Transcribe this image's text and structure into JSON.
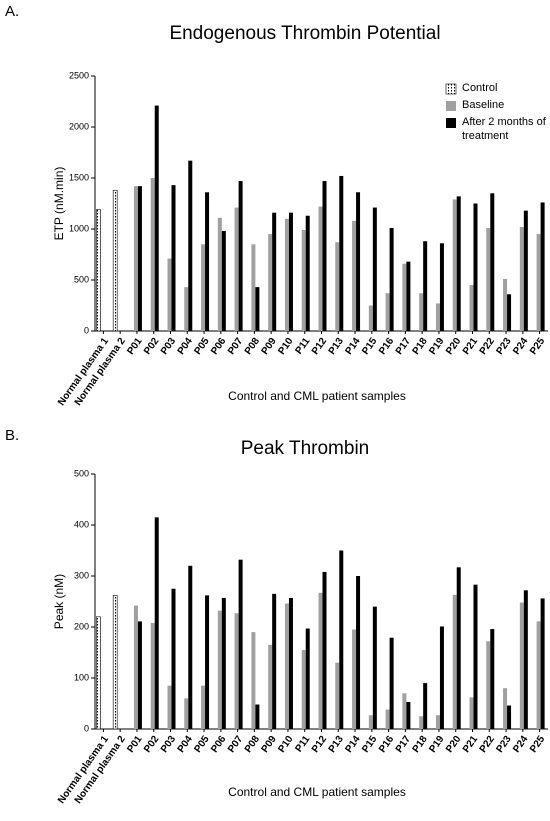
{
  "chart_data": [
    {
      "type": "bar",
      "panel_label": "A.",
      "title": "Endogenous Thrombin Potential",
      "x_label": "Control and CML patient samples",
      "y_label": "ETP (nM.min)",
      "categories": [
        "Normal plasma 1",
        "Normal plasma 2",
        "P01",
        "P02",
        "P03",
        "P04",
        "P05",
        "P06",
        "P07",
        "P08",
        "P09",
        "P10",
        "P11",
        "P12",
        "P13",
        "P14",
        "P15",
        "P16",
        "P17",
        "P18",
        "P19",
        "P20",
        "P21",
        "P22",
        "P23",
        "P24",
        "P25"
      ],
      "series": [
        {
          "name": "Control",
          "color": "#ffffff",
          "pattern": "dotted",
          "values": [
            1190,
            1380,
            null,
            null,
            null,
            null,
            null,
            null,
            null,
            null,
            null,
            null,
            null,
            null,
            null,
            null,
            null,
            null,
            null,
            null,
            null,
            null,
            null,
            null,
            null,
            null,
            null
          ]
        },
        {
          "name": "Baseline",
          "color": "#a0a0a0",
          "values": [
            null,
            null,
            1420,
            1500,
            710,
            430,
            850,
            1110,
            1210,
            850,
            950,
            1100,
            990,
            1220,
            870,
            1080,
            250,
            370,
            660,
            370,
            270,
            1290,
            450,
            1010,
            510,
            1020,
            950
          ]
        },
        {
          "name": "After 2 months of treatment",
          "color": "#000000",
          "values": [
            null,
            null,
            1420,
            2210,
            1430,
            1670,
            1360,
            980,
            1470,
            430,
            1160,
            1160,
            1130,
            1470,
            1520,
            1360,
            1210,
            1010,
            680,
            880,
            860,
            1320,
            1250,
            1350,
            360,
            1180,
            1260
          ]
        }
      ],
      "ylim": [
        0,
        2500
      ],
      "yticks": [
        0,
        500,
        1000,
        1500,
        2000,
        2500
      ],
      "legend": "top-right"
    },
    {
      "type": "bar",
      "panel_label": "B.",
      "title": "Peak Thrombin",
      "x_label": "Control and CML patient samples",
      "y_label": "Peak (nM)",
      "categories": [
        "Normal plasma 1",
        "Normal plasma 2",
        "P01",
        "P02",
        "P03",
        "P04",
        "P05",
        "P06",
        "P07",
        "P08",
        "P09",
        "P10",
        "P11",
        "P12",
        "P13",
        "P14",
        "P15",
        "P16",
        "P17",
        "P18",
        "P19",
        "P20",
        "P21",
        "P22",
        "P23",
        "P24",
        "P25"
      ],
      "series": [
        {
          "name": "Control",
          "color": "#ffffff",
          "pattern": "dotted",
          "values": [
            220,
            262,
            null,
            null,
            null,
            null,
            null,
            null,
            null,
            null,
            null,
            null,
            null,
            null,
            null,
            null,
            null,
            null,
            null,
            null,
            null,
            null,
            null,
            null,
            null,
            null,
            null
          ]
        },
        {
          "name": "Baseline",
          "color": "#a0a0a0",
          "values": [
            null,
            null,
            242,
            208,
            85,
            60,
            85,
            232,
            227,
            190,
            165,
            246,
            155,
            267,
            130,
            195,
            27,
            38,
            70,
            25,
            27,
            263,
            62,
            172,
            80,
            248,
            211
          ]
        },
        {
          "name": "After 2 months of treatment",
          "color": "#000000",
          "values": [
            null,
            null,
            211,
            415,
            275,
            320,
            262,
            257,
            332,
            48,
            265,
            257,
            197,
            308,
            350,
            300,
            240,
            179,
            53,
            90,
            201,
            317,
            283,
            196,
            46,
            272,
            256
          ]
        }
      ],
      "ylim": [
        0,
        500
      ],
      "yticks": [
        0,
        100,
        200,
        300,
        400,
        500
      ],
      "legend": "none"
    }
  ]
}
